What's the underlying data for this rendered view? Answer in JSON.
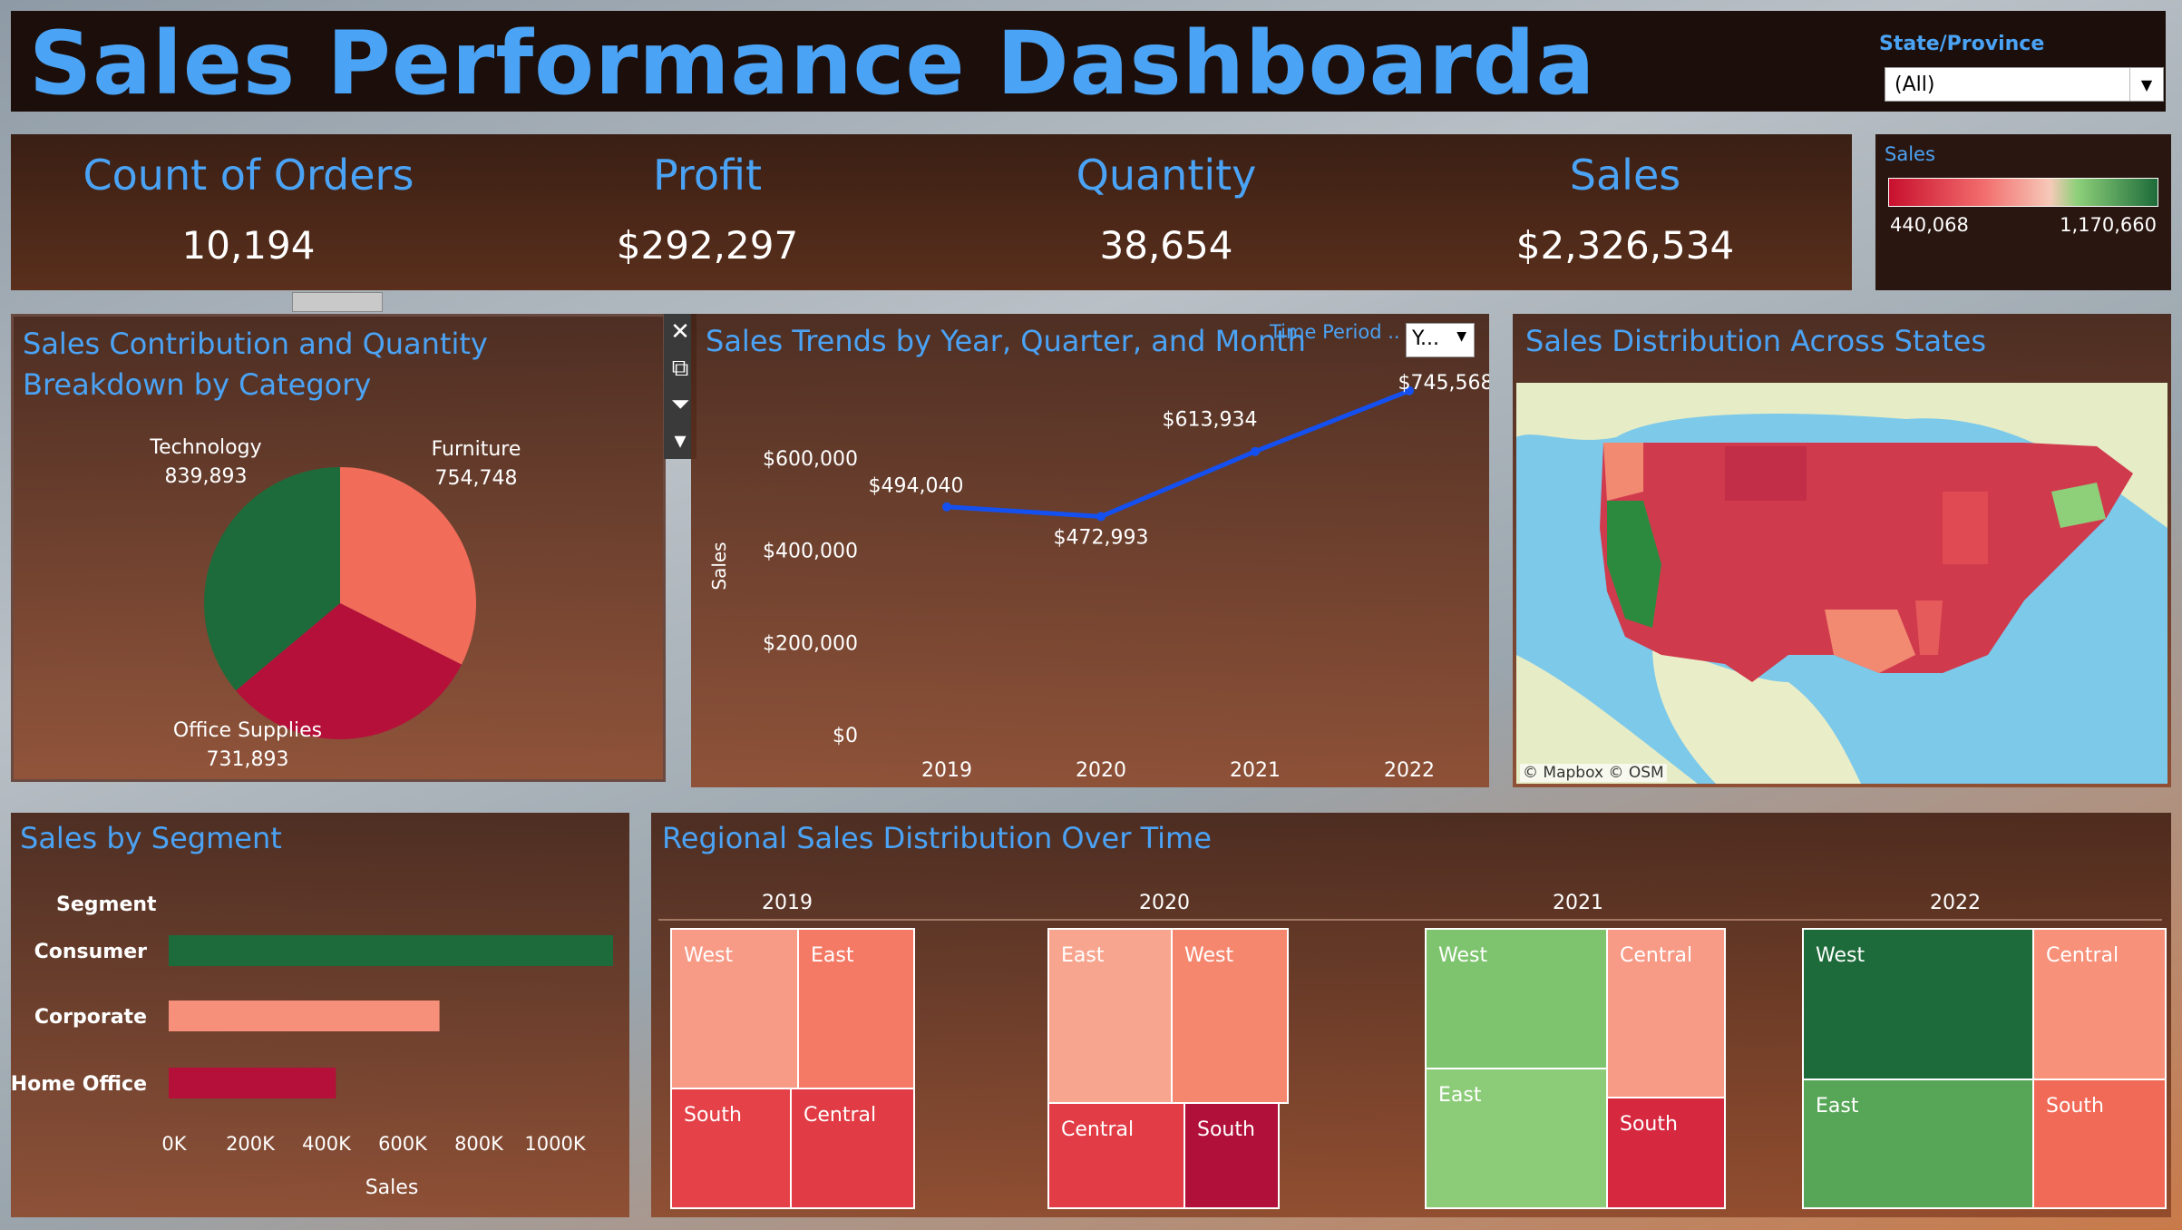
{
  "header": {
    "title": "Sales Performance Dashboarda"
  },
  "filter": {
    "label": "State/Province",
    "value": "(All)"
  },
  "kpis": [
    {
      "label": "Count of Orders",
      "value": "10,194"
    },
    {
      "label": "Profit",
      "value": "$292,297"
    },
    {
      "label": "Quantity",
      "value": "38,654"
    },
    {
      "label": "Sales",
      "value": "$2,326,534"
    }
  ],
  "legend": {
    "title": "Sales",
    "min": "440,068",
    "max": "1,170,660"
  },
  "colors": {
    "green_dark": "#1d6b3a",
    "salmon": "#f26c5a",
    "crimson": "#b5103a",
    "blue_line": "#1450f0",
    "title_blue": "#4ba3f5"
  },
  "chart_data": [
    {
      "type": "pie",
      "title": "Sales Contribution and Quantity Breakdown by Category",
      "slices": [
        {
          "label": "Furniture",
          "value": 754748,
          "display": "754,748",
          "color": "#f26c5a"
        },
        {
          "label": "Office Supplies",
          "value": 731893,
          "display": "731,893",
          "color": "#b5103a"
        },
        {
          "label": "Technology",
          "value": 839893,
          "display": "839,893",
          "color": "#1d6b3a"
        }
      ]
    },
    {
      "type": "line",
      "title": "Sales Trends by Year, Quarter, and Month",
      "ylabel": "Sales",
      "time_period_label": "Time Period ..",
      "time_period_value": "Y...",
      "x": [
        "2019",
        "2020",
        "2021",
        "2022"
      ],
      "values": [
        494040,
        472993,
        613934,
        745568
      ],
      "value_labels": [
        "$494,040",
        "$472,993",
        "$613,934",
        "$745,568"
      ],
      "yticks": [
        {
          "v": 0,
          "t": "$0"
        },
        {
          "v": 200000,
          "t": "$200,000"
        },
        {
          "v": 400000,
          "t": "$400,000"
        },
        {
          "v": 600000,
          "t": "$600,000"
        }
      ],
      "ylim": [
        0,
        810000
      ]
    },
    {
      "type": "map",
      "title": "Sales Distribution Across States",
      "attribution": "© Mapbox © OSM"
    },
    {
      "type": "bar",
      "orientation": "horizontal",
      "title": "Sales by Segment",
      "category_header": "Segment",
      "categories": [
        "Consumer",
        "Corporate",
        "Home Office"
      ],
      "values": [
        1170000,
        713000,
        440000
      ],
      "colors": [
        "#1d6b3a",
        "#f7907a",
        "#b5103a"
      ],
      "xticks": [
        {
          "v": 0,
          "t": "0K"
        },
        {
          "v": 200000,
          "t": "200K"
        },
        {
          "v": 400000,
          "t": "400K"
        },
        {
          "v": 600000,
          "t": "600K"
        },
        {
          "v": 800000,
          "t": "800K"
        },
        {
          "v": 1000000,
          "t": "1000K"
        }
      ],
      "xlabel": "Sales",
      "xlim": [
        0,
        1170000
      ]
    },
    {
      "type": "treemap",
      "title": "Regional Sales Distribution Over Time",
      "years": [
        {
          "year": "2019",
          "cells": [
            {
              "region": "West",
              "color": "#f79a86"
            },
            {
              "region": "East",
              "color": "#f47a66"
            },
            {
              "region": "South",
              "color": "#e54148"
            },
            {
              "region": "Central",
              "color": "#e13c45"
            }
          ]
        },
        {
          "year": "2020",
          "cells": [
            {
              "region": "East",
              "color": "#f7a58f"
            },
            {
              "region": "West",
              "color": "#f6876f"
            },
            {
              "region": "Central",
              "color": "#e23c46"
            },
            {
              "region": "South",
              "color": "#b0103a"
            }
          ]
        },
        {
          "year": "2021",
          "cells": [
            {
              "region": "West",
              "color": "#7ec46e"
            },
            {
              "region": "Central",
              "color": "#f79a86"
            },
            {
              "region": "East",
              "color": "#8ccc78"
            },
            {
              "region": "South",
              "color": "#d6283f"
            }
          ]
        },
        {
          "year": "2022",
          "cells": [
            {
              "region": "West",
              "color": "#1d6b3a"
            },
            {
              "region": "Central",
              "color": "#f7917a"
            },
            {
              "region": "East",
              "color": "#57a658"
            },
            {
              "region": "South",
              "color": "#f06a57"
            }
          ]
        }
      ]
    }
  ]
}
